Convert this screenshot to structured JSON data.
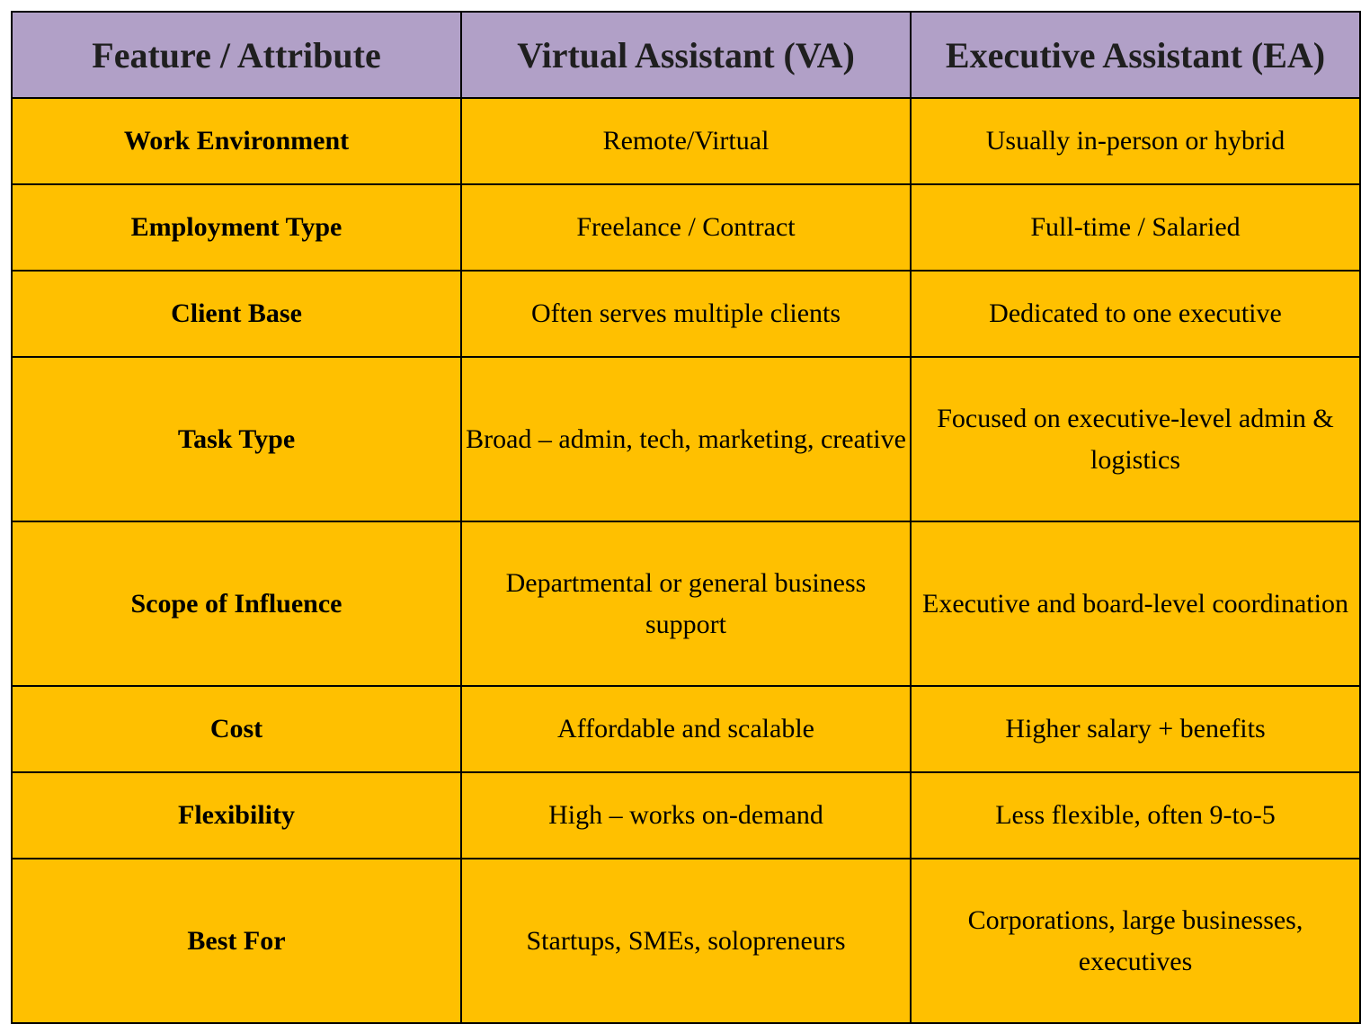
{
  "table": {
    "headers": [
      "Feature / Attribute",
      "Virtual Assistant (VA)",
      "Executive Assistant (EA)"
    ],
    "rows": [
      {
        "feature": "Work Environment",
        "va": "Remote/Virtual",
        "ea": "Usually in-person or hybrid"
      },
      {
        "feature": "Employment Type",
        "va": "Freelance / Contract",
        "ea": "Full-time / Salaried"
      },
      {
        "feature": "Client Base",
        "va": "Often serves multiple clients",
        "ea": "Dedicated to one executive"
      },
      {
        "feature": "Task Type",
        "va": "Broad – admin, tech, marketing, creative",
        "ea": "Focused on executive-level admin & logistics"
      },
      {
        "feature": "Scope of Influence",
        "va": "Departmental or general business support",
        "ea": "Executive and board-level coordination"
      },
      {
        "feature": "Cost",
        "va": "Affordable and scalable",
        "ea": "Higher salary + benefits"
      },
      {
        "feature": "Flexibility",
        "va": "High – works on-demand",
        "ea": "Less flexible, often 9-to-5"
      },
      {
        "feature": "Best For",
        "va": "Startups, SMEs, solopreneurs",
        "ea": "Corporations, large businesses, executives"
      }
    ]
  },
  "colors": {
    "header_bg": "#b1a0c7",
    "body_bg": "#ffc000",
    "border": "#000000"
  }
}
